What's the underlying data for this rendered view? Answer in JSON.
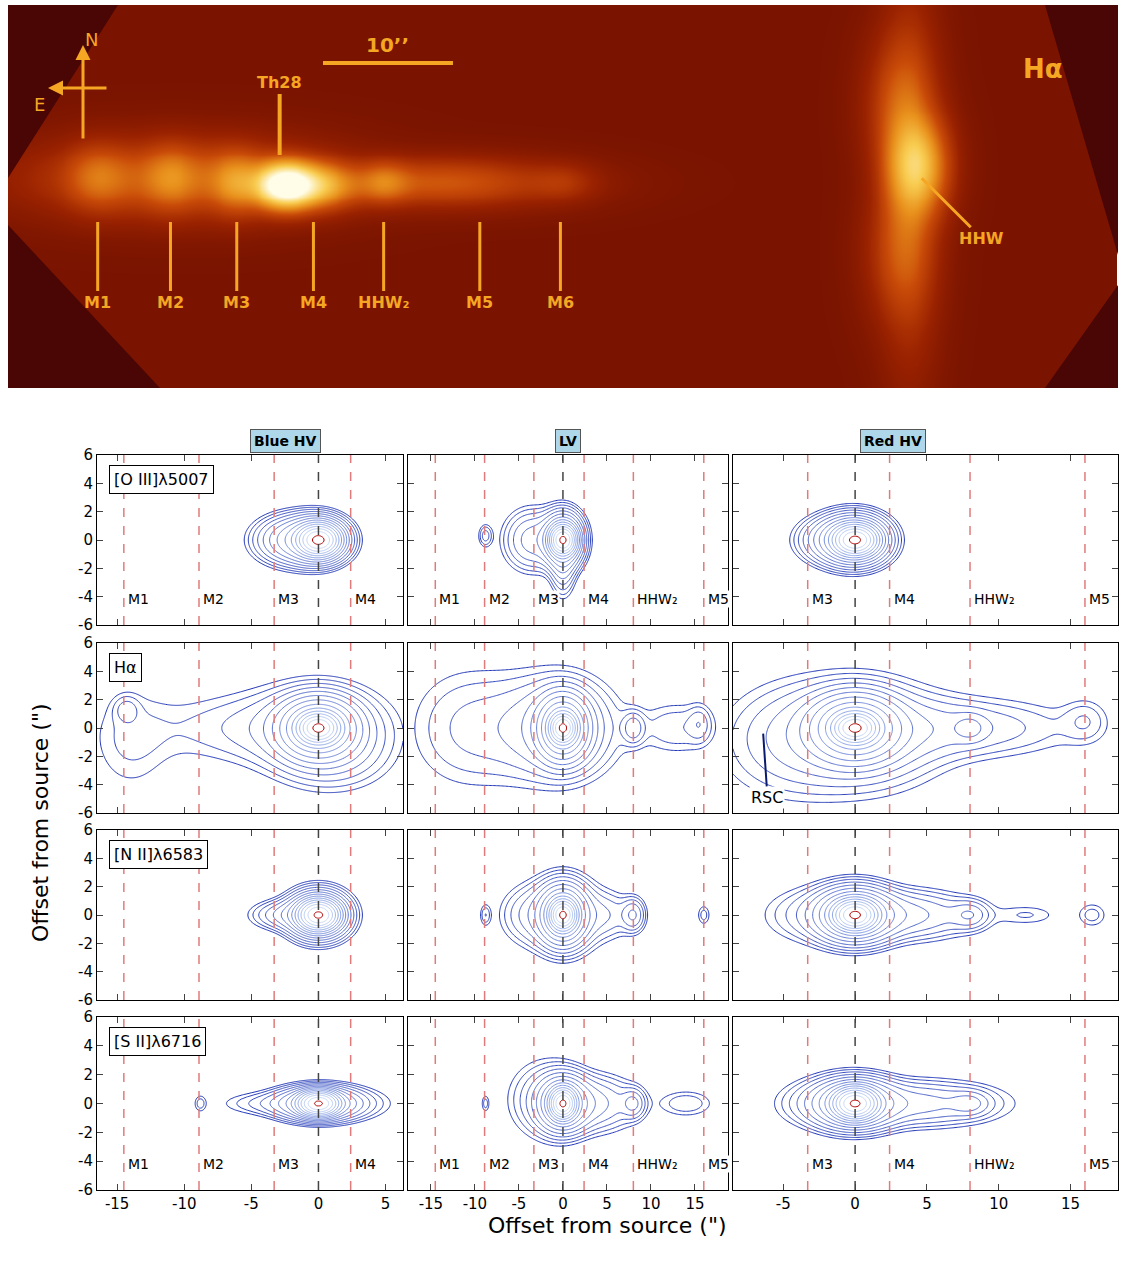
{
  "image": {
    "title": "Hα",
    "xlim": [
      -21.3,
      64.1
    ],
    "ylim": [
      -15.6,
      13.8
    ],
    "compass": {
      "north": "N",
      "east": "E"
    },
    "scale_bar": {
      "label": "10’’",
      "length": 10
    },
    "source": {
      "text": "Th28",
      "x": -0.4
    },
    "bow_shock": {
      "text": "HHW",
      "x": 49.0,
      "y": 0.5
    },
    "knots": [
      {
        "label": "M1",
        "x": -14.4
      },
      {
        "label": "M2",
        "x": -8.8
      },
      {
        "label": "M3",
        "x": -3.7
      },
      {
        "label": "M4",
        "x": 2.2
      },
      {
        "label": "HHW₂",
        "x": 7.6
      },
      {
        "label": "M5",
        "x": 15.0
      },
      {
        "label": "M6",
        "x": 21.2
      }
    ],
    "components": [
      {
        "x": 0,
        "y": 0,
        "sx": 1.4,
        "sy": 1.0,
        "amp": 1
      },
      {
        "x": 2.5,
        "y": 0,
        "sx": 1.8,
        "sy": 1.0,
        "amp": 0.35
      },
      {
        "x": -8,
        "y": 0.5,
        "sx": 6,
        "sy": 1.6,
        "amp": 0.15
      },
      {
        "x": -14.4,
        "y": 0.6,
        "sx": 1.4,
        "sy": 1.4,
        "amp": 0.12
      },
      {
        "x": -8.8,
        "y": 0.6,
        "sx": 1.2,
        "sy": 1.4,
        "amp": 0.12
      },
      {
        "x": -3.7,
        "y": 0.2,
        "sx": 1.2,
        "sy": 1.3,
        "amp": 0.2
      },
      {
        "x": 7.6,
        "y": 0.2,
        "sx": 1.2,
        "sy": 0.9,
        "amp": 0.15
      },
      {
        "x": 12,
        "y": 0.2,
        "sx": 5,
        "sy": 1.0,
        "amp": 0.12
      },
      {
        "x": 21.2,
        "y": 0.2,
        "sx": 1.5,
        "sy": 0.8,
        "amp": 0.04
      },
      {
        "x": 48.6,
        "y": 1.5,
        "sx": 1.3,
        "sy": 2.2,
        "amp": 0.4
      },
      {
        "x": 48.0,
        "y": 0.5,
        "sx": 1.2,
        "sy": 7,
        "amp": 0.12
      },
      {
        "x": 47.3,
        "y": 6,
        "sx": 1.4,
        "sy": 3,
        "amp": 0.1
      },
      {
        "x": 47.3,
        "y": -5,
        "sx": 1.4,
        "sy": 3,
        "amp": 0.08
      }
    ]
  },
  "chart_data": {
    "type": "contour",
    "x_label": "Offset from source (\")",
    "y_label": "Offset from source (\")",
    "ylim": [
      -6,
      6
    ],
    "yticks": [
      -6,
      -4,
      -2,
      0,
      2,
      4,
      6
    ],
    "source_x": 0,
    "knots": [
      {
        "label": "M1",
        "x": -14.5
      },
      {
        "label": "M2",
        "x": -8.9
      },
      {
        "label": "M3",
        "x": -3.3
      },
      {
        "label": "M4",
        "x": 2.4
      },
      {
        "label": "HHW₂",
        "x": 8.0
      },
      {
        "label": "M5",
        "x": 16.0
      }
    ],
    "columns": [
      {
        "title": "Blue HV",
        "xlim": [
          -16.5,
          6.3
        ],
        "xticks": [
          -15,
          -10,
          -5,
          0,
          5
        ],
        "knots": [
          "M1",
          "M2",
          "M3",
          "M4"
        ]
      },
      {
        "title": "LV",
        "xlim": [
          -17.6,
          18.75
        ],
        "xticks": [
          -15,
          -10,
          -5,
          0,
          5,
          10,
          15
        ],
        "knots": [
          "M1",
          "M2",
          "M3",
          "M4",
          "HHW₂",
          "M5"
        ]
      },
      {
        "title": "Red HV",
        "xlim": [
          -8.5,
          18.3
        ],
        "xticks": [
          -5,
          0,
          5,
          10,
          15
        ],
        "knots": [
          "M3",
          "M4",
          "HHW₂",
          "M5"
        ]
      }
    ],
    "rows": [
      {
        "line": "[O III]λ5007",
        "panels": [
          [
            {
              "x": 0,
              "y": 0,
              "sx": 0.7,
              "sy": 0.5,
              "amp": 1
            },
            {
              "x": -1.5,
              "y": 0,
              "sx": 1.6,
              "sy": 0.9,
              "amp": 0.06
            },
            {
              "x": 0,
              "y": 0,
              "sx": 1.1,
              "sy": 0.8,
              "amp": 0.15
            }
          ],
          [
            {
              "x": 0,
              "y": 0,
              "sx": 0.7,
              "sy": 0.5,
              "amp": 1
            },
            {
              "x": 0,
              "y": 0,
              "sx": 1.2,
              "sy": 1.0,
              "amp": 0.12
            },
            {
              "x": 0,
              "y": -1.5,
              "sx": 0.8,
              "sy": 1.3,
              "amp": 0.02
            },
            {
              "x": -3.5,
              "y": 0,
              "sx": 1.8,
              "sy": 1.2,
              "amp": 0.02
            },
            {
              "x": -8.8,
              "y": 0.3,
              "sx": 0.5,
              "sy": 0.5,
              "amp": 0.008
            }
          ],
          [
            {
              "x": 0,
              "y": 0,
              "sx": 0.7,
              "sy": 0.5,
              "amp": 1
            },
            {
              "x": 0,
              "y": 0,
              "sx": 1.2,
              "sy": 0.9,
              "amp": 0.12
            },
            {
              "x": -1,
              "y": 0,
              "sx": 1.5,
              "sy": 0.9,
              "amp": 0.04
            }
          ]
        ]
      },
      {
        "line": "Hα",
        "panels": [
          [
            {
              "x": 0,
              "y": 0,
              "sx": 0.7,
              "sy": 0.5,
              "amp": 1
            },
            {
              "x": 0,
              "y": 0,
              "sx": 1.5,
              "sy": 1.1,
              "amp": 0.15
            },
            {
              "x": 0,
              "y": 0,
              "sx": 3,
              "sy": 1.8,
              "amp": 0.015
            },
            {
              "x": -5,
              "y": 0,
              "sx": 5,
              "sy": 1.6,
              "amp": 0.006
            },
            {
              "x": -14.3,
              "y": 1.3,
              "sx": 0.6,
              "sy": 0.6,
              "amp": 0.006
            },
            {
              "x": -14,
              "y": -1,
              "sx": 2,
              "sy": 2.5,
              "amp": 0.004
            },
            {
              "x": 1,
              "y": -2,
              "sx": 2.5,
              "sy": 1.5,
              "amp": 0.008
            }
          ],
          [
            {
              "x": 0,
              "y": 0,
              "sx": 0.7,
              "sy": 0.5,
              "amp": 1
            },
            {
              "x": 0,
              "y": 0,
              "sx": 1.5,
              "sy": 1.2,
              "amp": 0.15
            },
            {
              "x": 0,
              "y": 0,
              "sx": 3.5,
              "sy": 2,
              "amp": 0.02
            },
            {
              "x": -6,
              "y": 0,
              "sx": 5,
              "sy": 2.5,
              "amp": 0.006
            },
            {
              "x": 8,
              "y": 0,
              "sx": 0.8,
              "sy": 0.7,
              "amp": 0.012
            },
            {
              "x": 13,
              "y": 0,
              "sx": 3,
              "sy": 1.2,
              "amp": 0.006
            },
            {
              "x": 15.5,
              "y": 0.3,
              "sx": 0.8,
              "sy": 0.8,
              "amp": 0.006
            },
            {
              "x": -12,
              "y": 0,
              "sx": 4,
              "sy": 2.8,
              "amp": 0.004
            }
          ],
          [
            {
              "x": 0,
              "y": 0,
              "sx": 0.7,
              "sy": 0.5,
              "amp": 1
            },
            {
              "x": 0,
              "y": 0,
              "sx": 1.6,
              "sy": 1.2,
              "amp": 0.15
            },
            {
              "x": 0,
              "y": -0.5,
              "sx": 3.5,
              "sy": 2.2,
              "amp": 0.02
            },
            {
              "x": 7,
              "y": 0,
              "sx": 5,
              "sy": 1.3,
              "amp": 0.01
            },
            {
              "x": 8,
              "y": 0,
              "sx": 0.7,
              "sy": 0.6,
              "amp": 0.01
            },
            {
              "x": 16,
              "y": 0.5,
              "sx": 1,
              "sy": 1,
              "amp": 0.005
            },
            {
              "x": -5,
              "y": -1,
              "sx": 3,
              "sy": 2.5,
              "amp": 0.006
            }
          ]
        ]
      },
      {
        "line": "[N II]λ6583",
        "panels": [
          [
            {
              "x": 0,
              "y": 0,
              "sx": 0.7,
              "sy": 0.5,
              "amp": 1
            },
            {
              "x": 0,
              "y": 0,
              "sx": 1.2,
              "sy": 0.9,
              "amp": 0.1
            },
            {
              "x": -2,
              "y": 0,
              "sx": 1.6,
              "sy": 0.6,
              "amp": 0.02
            }
          ],
          [
            {
              "x": 0,
              "y": 0,
              "sx": 0.7,
              "sy": 0.5,
              "amp": 1
            },
            {
              "x": 0,
              "y": 0,
              "sx": 1.4,
              "sy": 1.1,
              "amp": 0.12
            },
            {
              "x": 0,
              "y": 0,
              "sx": 2.5,
              "sy": 1.5,
              "amp": 0.02
            },
            {
              "x": 8,
              "y": 0,
              "sx": 0.8,
              "sy": 0.7,
              "amp": 0.015
            },
            {
              "x": 5,
              "y": 0,
              "sx": 2,
              "sy": 1,
              "amp": 0.008
            },
            {
              "x": -4,
              "y": 0,
              "sx": 2,
              "sy": 1.2,
              "amp": 0.008
            },
            {
              "x": -8.8,
              "y": 0,
              "sx": 0.4,
              "sy": 0.5,
              "amp": 0.006
            },
            {
              "x": 16,
              "y": 0,
              "sx": 0.5,
              "sy": 0.5,
              "amp": 0.005
            }
          ],
          [
            {
              "x": 0,
              "y": 0,
              "sx": 0.7,
              "sy": 0.5,
              "amp": 1
            },
            {
              "x": 0,
              "y": 0,
              "sx": 1.4,
              "sy": 1.0,
              "amp": 0.12
            },
            {
              "x": 3,
              "y": 0,
              "sx": 3,
              "sy": 1,
              "amp": 0.02
            },
            {
              "x": 8,
              "y": 0,
              "sx": 0.8,
              "sy": 0.6,
              "amp": 0.012
            },
            {
              "x": -2,
              "y": 0,
              "sx": 2.5,
              "sy": 1.2,
              "amp": 0.01
            },
            {
              "x": 16.5,
              "y": 0,
              "sx": 0.7,
              "sy": 0.6,
              "amp": 0.005
            },
            {
              "x": 12,
              "y": 0,
              "sx": 1.5,
              "sy": 0.5,
              "amp": 0.004
            }
          ]
        ]
      },
      {
        "line": "[S II]λ6716",
        "panels": [
          [
            {
              "x": 0,
              "y": 0,
              "sx": 0.7,
              "sy": 0.4,
              "amp": 1
            },
            {
              "x": 0,
              "y": 0,
              "sx": 1.6,
              "sy": 0.6,
              "amp": 0.08
            },
            {
              "x": 1,
              "y": 0,
              "sx": 2.5,
              "sy": 0.7,
              "amp": 0.01
            },
            {
              "x": -3,
              "y": 0,
              "sx": 2.5,
              "sy": 0.5,
              "amp": 0.008
            },
            {
              "x": -8.8,
              "y": 0,
              "sx": 0.3,
              "sy": 0.4,
              "amp": 0.005
            }
          ],
          [
            {
              "x": 0,
              "y": 0,
              "sx": 0.7,
              "sy": 0.5,
              "amp": 1
            },
            {
              "x": 0,
              "y": 0,
              "sx": 1.5,
              "sy": 1.0,
              "amp": 0.1
            },
            {
              "x": 3,
              "y": 0,
              "sx": 3,
              "sy": 1.1,
              "amp": 0.02
            },
            {
              "x": -2,
              "y": 0.3,
              "sx": 2.5,
              "sy": 1.6,
              "amp": 0.01
            },
            {
              "x": 8,
              "y": 0,
              "sx": 0.8,
              "sy": 0.6,
              "amp": 0.015
            },
            {
              "x": 14,
              "y": 0,
              "sx": 2,
              "sy": 0.6,
              "amp": 0.006
            },
            {
              "x": -8.8,
              "y": 0,
              "sx": 0.3,
              "sy": 0.4,
              "amp": 0.005
            }
          ],
          [
            {
              "x": 0,
              "y": 0,
              "sx": 0.7,
              "sy": 0.5,
              "amp": 1
            },
            {
              "x": 0,
              "y": 0,
              "sx": 1.5,
              "sy": 0.9,
              "amp": 0.1
            },
            {
              "x": 4,
              "y": 0,
              "sx": 3.5,
              "sy": 0.9,
              "amp": 0.02
            },
            {
              "x": 8,
              "y": 0,
              "sx": 0.8,
              "sy": 0.5,
              "amp": 0.012
            },
            {
              "x": -2,
              "y": 0,
              "sx": 2,
              "sy": 1,
              "amp": 0.01
            }
          ]
        ]
      }
    ],
    "annotations": [
      {
        "text": "RSC",
        "row": 1,
        "column": 2,
        "x": -6.1,
        "y": -4.9,
        "pointer": [
          -6.4,
          -0.4
        ]
      }
    ]
  }
}
